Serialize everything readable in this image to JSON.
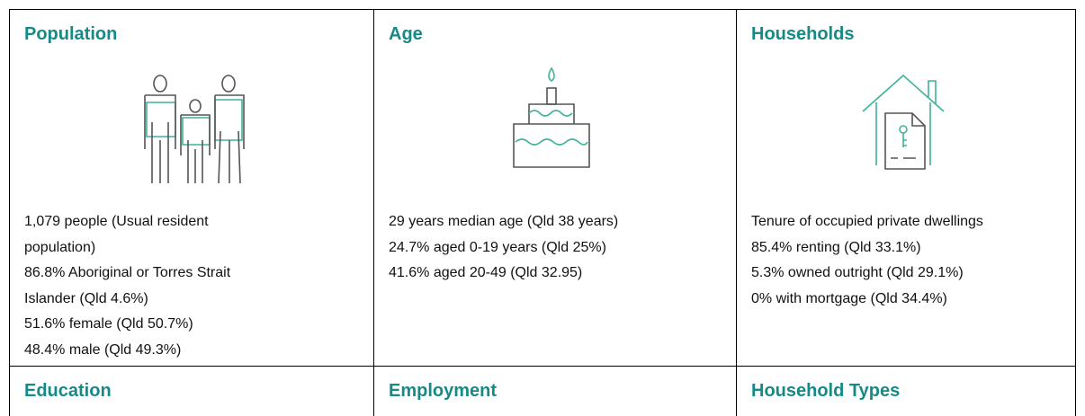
{
  "cells": [
    {
      "title": "Population",
      "lines": [
        "1,079 people (Usual resident",
        "population)",
        "86.8% Aboriginal or Torres Strait",
        "Islander (Qld 4.6%)",
        "51.6% female (Qld 50.7%)",
        "48.4% male (Qld 49.3%)"
      ]
    },
    {
      "title": "Age",
      "lines": [
        "29 years median age (Qld 38 years)",
        "24.7% aged 0-19 years (Qld 25%)",
        "41.6% aged 20-49 (Qld 32.95)"
      ]
    },
    {
      "title": "Households",
      "lines": [
        "Tenure of occupied private dwellings",
        "85.4% renting (Qld 33.1%)",
        "5.3% owned outright (Qld 29.1%)",
        "0% with mortgage (Qld 34.4%)"
      ]
    },
    {
      "title": "Education",
      "lines": []
    },
    {
      "title": "Employment",
      "lines": []
    },
    {
      "title": "Household Types",
      "lines": []
    }
  ]
}
